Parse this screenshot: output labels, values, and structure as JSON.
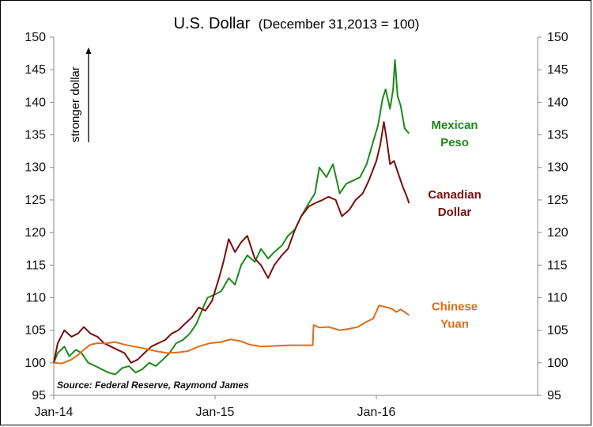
{
  "chart_data": {
    "type": "line",
    "title": "U.S. Dollar",
    "subtitle": "(December 31,2013 = 100)",
    "ylabel": "stronger dollar",
    "source": "Source: Federal Reserve, Raymond James",
    "xlim": [
      "2014-01-01",
      "2016-12-31"
    ],
    "ylim": [
      95,
      150
    ],
    "yticks": [
      95,
      100,
      105,
      110,
      115,
      120,
      125,
      130,
      135,
      140,
      145,
      150
    ],
    "xtick_labels": [
      "Jan-14",
      "Jan-15",
      "Jan-16"
    ],
    "xtick_dates": [
      "2014-01-01",
      "2015-01-01",
      "2016-01-01"
    ],
    "grid": false,
    "series": [
      {
        "name": "Mexican Peso",
        "label_lines": [
          "Mexican",
          "Peso"
        ],
        "color": "#1a8a1a",
        "points": [
          [
            "2014-01-01",
            100.0
          ],
          [
            "2014-01-10",
            101.5
          ],
          [
            "2014-01-25",
            102.5
          ],
          [
            "2014-02-05",
            101.0
          ],
          [
            "2014-02-20",
            102.0
          ],
          [
            "2014-03-05",
            101.5
          ],
          [
            "2014-03-20",
            100.0
          ],
          [
            "2014-04-05",
            99.5
          ],
          [
            "2014-04-20",
            99.0
          ],
          [
            "2014-05-05",
            98.5
          ],
          [
            "2014-05-20",
            98.2
          ],
          [
            "2014-06-05",
            99.2
          ],
          [
            "2014-06-20",
            99.5
          ],
          [
            "2014-07-05",
            98.5
          ],
          [
            "2014-07-20",
            99.0
          ],
          [
            "2014-08-05",
            100.0
          ],
          [
            "2014-08-20",
            99.5
          ],
          [
            "2014-09-05",
            100.5
          ],
          [
            "2014-09-20",
            101.5
          ],
          [
            "2014-10-05",
            103.0
          ],
          [
            "2014-10-20",
            103.5
          ],
          [
            "2014-11-05",
            104.5
          ],
          [
            "2014-11-20",
            106.0
          ],
          [
            "2014-12-05",
            108.5
          ],
          [
            "2014-12-15",
            110.0
          ],
          [
            "2015-01-01",
            110.5
          ],
          [
            "2015-01-15",
            111.0
          ],
          [
            "2015-02-01",
            113.0
          ],
          [
            "2015-02-15",
            112.0
          ],
          [
            "2015-03-01",
            115.0
          ],
          [
            "2015-03-15",
            116.5
          ],
          [
            "2015-04-01",
            115.5
          ],
          [
            "2015-04-15",
            117.5
          ],
          [
            "2015-05-01",
            116.0
          ],
          [
            "2015-05-15",
            117.0
          ],
          [
            "2015-06-01",
            118.0
          ],
          [
            "2015-06-15",
            119.5
          ],
          [
            "2015-07-01",
            120.5
          ],
          [
            "2015-07-15",
            122.5
          ],
          [
            "2015-08-01",
            124.5
          ],
          [
            "2015-08-15",
            126.0
          ],
          [
            "2015-08-25",
            130.0
          ],
          [
            "2015-09-10",
            128.5
          ],
          [
            "2015-09-25",
            130.5
          ],
          [
            "2015-10-10",
            126.0
          ],
          [
            "2015-10-25",
            127.5
          ],
          [
            "2015-11-10",
            128.0
          ],
          [
            "2015-11-25",
            128.5
          ],
          [
            "2015-12-10",
            130.5
          ],
          [
            "2015-12-25",
            134.0
          ],
          [
            "2016-01-05",
            136.5
          ],
          [
            "2016-01-15",
            140.5
          ],
          [
            "2016-01-22",
            142.0
          ],
          [
            "2016-02-01",
            139.0
          ],
          [
            "2016-02-08",
            142.0
          ],
          [
            "2016-02-12",
            146.5
          ],
          [
            "2016-02-18",
            141.0
          ],
          [
            "2016-02-25",
            139.5
          ],
          [
            "2016-03-05",
            136.0
          ],
          [
            "2016-03-15",
            135.2
          ]
        ]
      },
      {
        "name": "Canadian Dollar",
        "label_lines": [
          "Canadian",
          "Dollar"
        ],
        "color": "#7a0d0d",
        "points": [
          [
            "2014-01-01",
            100.0
          ],
          [
            "2014-01-10",
            103.0
          ],
          [
            "2014-01-25",
            105.0
          ],
          [
            "2014-02-10",
            104.0
          ],
          [
            "2014-02-25",
            104.5
          ],
          [
            "2014-03-10",
            105.5
          ],
          [
            "2014-03-25",
            104.5
          ],
          [
            "2014-04-10",
            104.0
          ],
          [
            "2014-04-25",
            103.0
          ],
          [
            "2014-05-10",
            102.5
          ],
          [
            "2014-05-25",
            102.0
          ],
          [
            "2014-06-10",
            101.5
          ],
          [
            "2014-06-25",
            100.0
          ],
          [
            "2014-07-10",
            100.5
          ],
          [
            "2014-07-25",
            101.5
          ],
          [
            "2014-08-10",
            102.5
          ],
          [
            "2014-08-25",
            103.0
          ],
          [
            "2014-09-10",
            103.5
          ],
          [
            "2014-09-25",
            104.5
          ],
          [
            "2014-10-10",
            105.0
          ],
          [
            "2014-10-25",
            106.0
          ],
          [
            "2014-11-10",
            107.0
          ],
          [
            "2014-11-25",
            108.5
          ],
          [
            "2014-12-10",
            108.0
          ],
          [
            "2014-12-25",
            109.5
          ],
          [
            "2015-01-10",
            113.0
          ],
          [
            "2015-01-20",
            115.5
          ],
          [
            "2015-02-01",
            119.0
          ],
          [
            "2015-02-15",
            117.0
          ],
          [
            "2015-03-01",
            118.5
          ],
          [
            "2015-03-15",
            119.5
          ],
          [
            "2015-04-01",
            116.0
          ],
          [
            "2015-04-15",
            115.0
          ],
          [
            "2015-05-01",
            113.0
          ],
          [
            "2015-05-15",
            115.0
          ],
          [
            "2015-06-01",
            116.5
          ],
          [
            "2015-06-15",
            117.5
          ],
          [
            "2015-07-01",
            120.5
          ],
          [
            "2015-07-15",
            122.5
          ],
          [
            "2015-08-01",
            124.0
          ],
          [
            "2015-08-15",
            124.5
          ],
          [
            "2015-09-01",
            125.0
          ],
          [
            "2015-09-15",
            125.5
          ],
          [
            "2015-10-01",
            125.0
          ],
          [
            "2015-10-15",
            122.5
          ],
          [
            "2015-11-01",
            123.5
          ],
          [
            "2015-11-15",
            125.0
          ],
          [
            "2015-12-01",
            126.0
          ],
          [
            "2015-12-15",
            128.0
          ],
          [
            "2016-01-01",
            131.0
          ],
          [
            "2016-01-10",
            133.5
          ],
          [
            "2016-01-18",
            137.0
          ],
          [
            "2016-01-25",
            134.0
          ],
          [
            "2016-02-01",
            130.5
          ],
          [
            "2016-02-10",
            131.0
          ],
          [
            "2016-02-20",
            129.0
          ],
          [
            "2016-03-01",
            127.0
          ],
          [
            "2016-03-10",
            125.5
          ],
          [
            "2016-03-15",
            124.5
          ]
        ]
      },
      {
        "name": "Chinese Yuan",
        "label_lines": [
          "Chinese",
          "Yuan"
        ],
        "color": "#e06c1a",
        "points": [
          [
            "2014-01-01",
            100.0
          ],
          [
            "2014-01-20",
            99.9
          ],
          [
            "2014-02-10",
            100.5
          ],
          [
            "2014-02-25",
            101.2
          ],
          [
            "2014-03-10",
            102.0
          ],
          [
            "2014-03-25",
            102.8
          ],
          [
            "2014-04-10",
            103.0
          ],
          [
            "2014-05-01",
            103.0
          ],
          [
            "2014-05-20",
            103.2
          ],
          [
            "2014-06-10",
            102.8
          ],
          [
            "2014-07-01",
            102.5
          ],
          [
            "2014-07-25",
            102.2
          ],
          [
            "2014-08-20",
            101.8
          ],
          [
            "2014-09-15",
            101.5
          ],
          [
            "2014-10-10",
            101.6
          ],
          [
            "2014-11-01",
            101.8
          ],
          [
            "2014-11-25",
            102.5
          ],
          [
            "2014-12-20",
            103.0
          ],
          [
            "2015-01-15",
            103.2
          ],
          [
            "2015-02-05",
            103.6
          ],
          [
            "2015-03-01",
            103.3
          ],
          [
            "2015-03-20",
            102.8
          ],
          [
            "2015-04-15",
            102.5
          ],
          [
            "2015-05-20",
            102.6
          ],
          [
            "2015-06-20",
            102.7
          ],
          [
            "2015-07-15",
            102.7
          ],
          [
            "2015-08-10",
            102.7
          ],
          [
            "2015-08-12",
            105.8
          ],
          [
            "2015-08-25",
            105.4
          ],
          [
            "2015-09-15",
            105.5
          ],
          [
            "2015-10-10",
            105.0
          ],
          [
            "2015-10-30",
            105.2
          ],
          [
            "2015-11-20",
            105.5
          ],
          [
            "2015-12-10",
            106.3
          ],
          [
            "2015-12-25",
            106.8
          ],
          [
            "2016-01-07",
            108.8
          ],
          [
            "2016-01-20",
            108.6
          ],
          [
            "2016-02-05",
            108.3
          ],
          [
            "2016-02-15",
            107.8
          ],
          [
            "2016-02-25",
            108.2
          ],
          [
            "2016-03-05",
            107.8
          ],
          [
            "2016-03-15",
            107.3
          ]
        ]
      }
    ]
  }
}
